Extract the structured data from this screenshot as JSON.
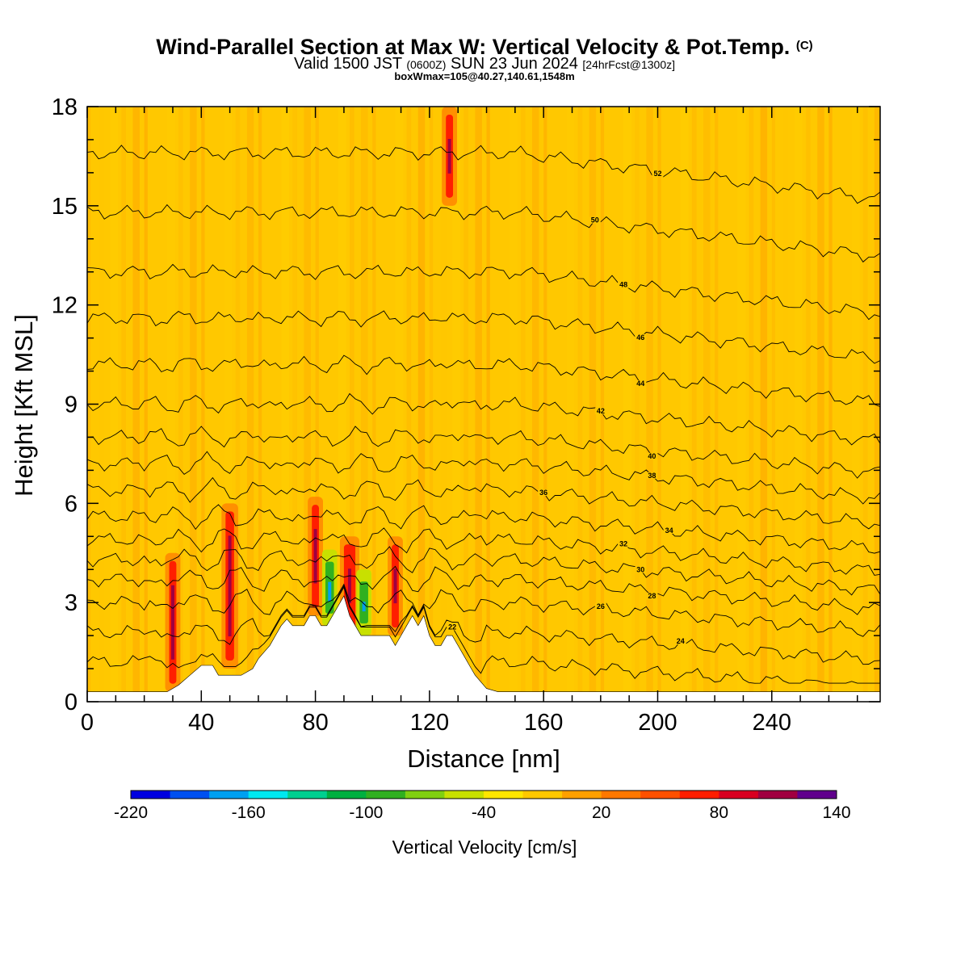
{
  "header": {
    "title_main": "Wind-Parallel Section at Max W: Vertical Velocity & Pot.Temp.",
    "title_copyright": "(C)",
    "valid_prefix": "Valid 1500 JST",
    "valid_utc": "(0600Z)",
    "valid_date": "SUN 23 Jun 2024",
    "forecast": "[24hrFcst@1300z]",
    "box_info": "boxWmax=105@40.27,140.61,1548m"
  },
  "chart_data": {
    "type": "heatmap",
    "xlabel": "Distance [nm]",
    "ylabel": "Height [Kft MSL]",
    "xlim": [
      0,
      278
    ],
    "ylim": [
      0,
      18
    ],
    "x_ticks": [
      0,
      40,
      80,
      120,
      160,
      200,
      240
    ],
    "y_ticks": [
      0,
      3,
      6,
      9,
      12,
      15,
      18
    ],
    "colorbar": {
      "title": "Vertical Velocity [cm/s]",
      "labels": [
        "-220",
        "-160",
        "-100",
        "-40",
        "20",
        "80",
        "140"
      ],
      "colors": [
        "#0000e0",
        "#0050f0",
        "#00a0f0",
        "#00e8f0",
        "#00d090",
        "#00b040",
        "#30b020",
        "#80d010",
        "#c8e000",
        "#ffe600",
        "#ffc800",
        "#ffa000",
        "#ff7800",
        "#ff5000",
        "#ff1e00",
        "#d80020",
        "#a00040",
        "#60008c"
      ]
    },
    "terrain_kft": [
      [
        0,
        0.3
      ],
      [
        20,
        0.3
      ],
      [
        28,
        0.3
      ],
      [
        32,
        0.5
      ],
      [
        36,
        0.8
      ],
      [
        40,
        1.1
      ],
      [
        44,
        1.1
      ],
      [
        46,
        0.8
      ],
      [
        54,
        0.8
      ],
      [
        58,
        1.0
      ],
      [
        60,
        1.3
      ],
      [
        62,
        1.5
      ],
      [
        64,
        1.7
      ],
      [
        66,
        2.0
      ],
      [
        68,
        2.3
      ],
      [
        70,
        2.5
      ],
      [
        72,
        2.3
      ],
      [
        76,
        2.3
      ],
      [
        78,
        2.6
      ],
      [
        80,
        2.6
      ],
      [
        82,
        2.3
      ],
      [
        84,
        2.3
      ],
      [
        86,
        2.6
      ],
      [
        88,
        2.9
      ],
      [
        90,
        3.2
      ],
      [
        92,
        2.6
      ],
      [
        94,
        2.3
      ],
      [
        96,
        2.0
      ],
      [
        98,
        2.0
      ],
      [
        104,
        2.0
      ],
      [
        106,
        2.0
      ],
      [
        108,
        1.7
      ],
      [
        110,
        2.0
      ],
      [
        112,
        2.3
      ],
      [
        114,
        2.6
      ],
      [
        116,
        2.3
      ],
      [
        118,
        2.6
      ],
      [
        120,
        2.0
      ],
      [
        122,
        1.7
      ],
      [
        124,
        1.7
      ],
      [
        126,
        2.0
      ],
      [
        128,
        2.0
      ],
      [
        130,
        1.7
      ],
      [
        132,
        1.4
      ],
      [
        134,
        1.1
      ],
      [
        136,
        0.8
      ],
      [
        140,
        0.4
      ],
      [
        144,
        0.3
      ],
      [
        278,
        0.3
      ]
    ],
    "updraft_bands": [
      {
        "x": 30,
        "w": 2.5,
        "base": 0.3,
        "top": 4.5,
        "kind": "up"
      },
      {
        "x": 50,
        "w": 3,
        "base": 1.0,
        "top": 6.0,
        "kind": "up"
      },
      {
        "x": 80,
        "w": 2.5,
        "base": 2.6,
        "top": 6.2,
        "kind": "up"
      },
      {
        "x": 92,
        "w": 4,
        "base": 2.0,
        "top": 5.0,
        "kind": "up"
      },
      {
        "x": 108,
        "w": 2.5,
        "base": 2.0,
        "top": 5.0,
        "kind": "up"
      },
      {
        "x": 127,
        "w": 2.5,
        "base": 15.0,
        "top": 18.0,
        "kind": "up"
      },
      {
        "x": 85,
        "w": 3,
        "base": 2.3,
        "top": 4.6,
        "kind": "down"
      },
      {
        "x": 97,
        "w": 3,
        "base": 2.0,
        "top": 4.0,
        "kind": "down"
      }
    ],
    "isentropes": [
      {
        "label": "22",
        "base": 1.2,
        "x_label": 128
      },
      {
        "label": "24",
        "base": 2.1,
        "x_label": 208
      },
      {
        "label": "26",
        "base": 3.0,
        "x_label": 180
      },
      {
        "label": "28",
        "base": 3.7,
        "x_label": 198
      },
      {
        "label": "30",
        "base": 4.3,
        "x_label": 194
      },
      {
        "label": "32",
        "base": 4.9,
        "x_label": 188
      },
      {
        "label": "34",
        "base": 5.6,
        "x_label": 204
      },
      {
        "label": "36",
        "base": 6.4,
        "x_label": 160
      },
      {
        "label": "38",
        "base": 7.2,
        "x_label": 198
      },
      {
        "label": "40",
        "base": 8.0,
        "x_label": 198
      },
      {
        "label": "42",
        "base": 9.0,
        "x_label": 180
      },
      {
        "label": "44",
        "base": 10.2,
        "x_label": 194
      },
      {
        "label": "46",
        "base": 11.6,
        "x_label": 194
      },
      {
        "label": "48",
        "base": 13.0,
        "x_label": 188
      },
      {
        "label": "50",
        "base": 14.8,
        "x_label": 178
      },
      {
        "label": "52",
        "base": 16.6,
        "x_label": 200
      }
    ]
  }
}
